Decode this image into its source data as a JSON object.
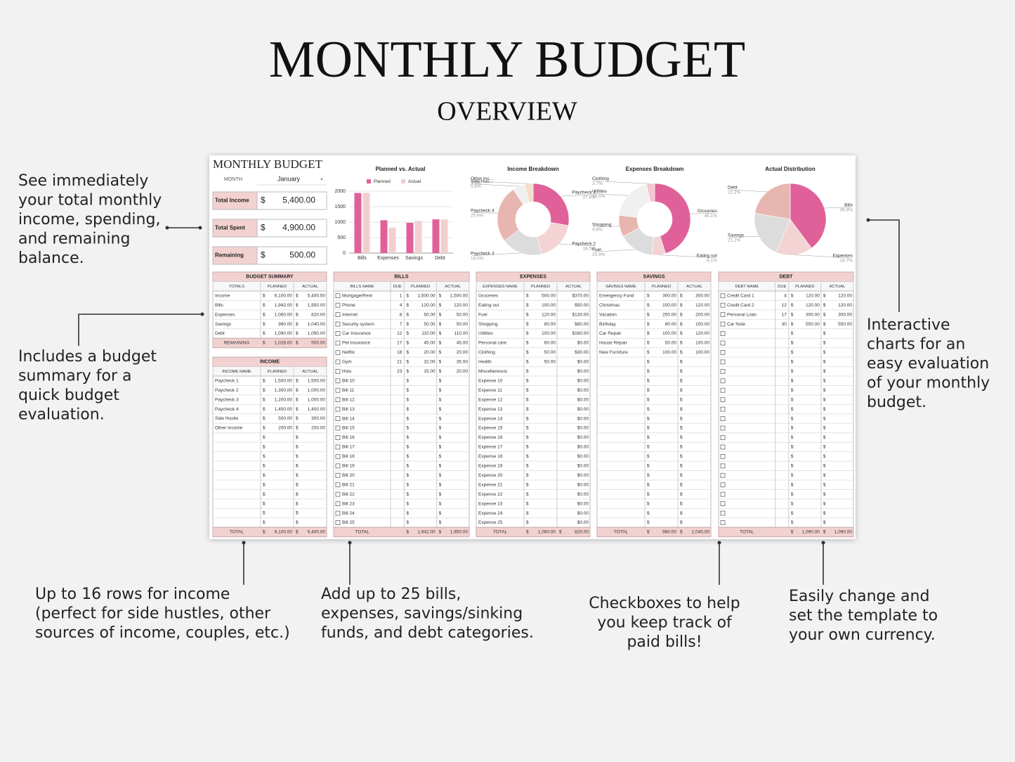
{
  "header": {
    "title": "MONTHLY BUDGET",
    "subtitle": "OVERVIEW"
  },
  "annotations": [
    {
      "lines": [
        "See immediately",
        "your total monthly",
        "income, spending,",
        "and remaining",
        "balance."
      ]
    },
    {
      "lines": [
        "Includes a budget",
        "summary for a",
        "quick budget",
        "evaluation."
      ]
    },
    {
      "lines": [
        "Interactive",
        "charts for an",
        "easy evaluation",
        "of your monthly",
        "budget."
      ]
    },
    {
      "lines": [
        "Up to 16 rows for income",
        "(perfect for side hustles, other",
        "sources of income, couples, etc.)"
      ]
    },
    {
      "lines": [
        "Add up to 25 bills,",
        "expenses, savings/sinking",
        "funds, and debt categories."
      ]
    },
    {
      "lines": [
        "Checkboxes to help",
        "you keep track of",
        "paid bills!"
      ]
    },
    {
      "lines": [
        "Easily change and",
        "set the template to",
        "your own currency."
      ]
    }
  ],
  "sheet": {
    "title": "MONTHLY BUDGET",
    "month_label": "MONTH:",
    "month": "January",
    "currency": "$",
    "kpis": [
      {
        "label": "Total Income",
        "value": "5,400.00"
      },
      {
        "label": "Total Spent",
        "value": "4,900.00"
      },
      {
        "label": "Remaining",
        "value": "500.00"
      }
    ],
    "tables": {
      "budget_summary": {
        "title": "BUDGET SUMMARY",
        "columns": [
          "TOTALS",
          "PLANNED",
          "ACTUAL"
        ],
        "rows": [
          [
            "Income",
            "6,100.00",
            "5,400.00"
          ],
          [
            "Bills",
            "1,942.00",
            "1,950.00"
          ],
          [
            "Expenses",
            "1,060.00",
            "820.00"
          ],
          [
            "Savings",
            "980.00",
            "1,040.00"
          ],
          [
            "Debt",
            "1,090.00",
            "1,090.00"
          ]
        ],
        "total": {
          "label": "REMAINING",
          "planned": "1,028.00",
          "actual": "500.00"
        }
      },
      "income": {
        "title": "INCOME",
        "columns": [
          "INCOME NAME",
          "PLANNED",
          "ACTUAL"
        ],
        "rows": [
          [
            "Paycheck 1",
            "1,500.00",
            "1,500.00"
          ],
          [
            "Paycheck 2",
            "1,300.00",
            "1,000.00"
          ],
          [
            "Paycheck 3",
            "1,200.00",
            "1,000.00"
          ],
          [
            "Paycheck 4",
            "1,400.00",
            "1,400.00"
          ],
          [
            "Side Hustle",
            "500.00",
            "300.00"
          ],
          [
            "Other Income",
            "200.00",
            "200.00"
          ],
          [
            null,
            null,
            null
          ],
          [
            null,
            null,
            null
          ],
          [
            null,
            null,
            null
          ],
          [
            null,
            null,
            null
          ],
          [
            null,
            null,
            null
          ],
          [
            null,
            null,
            null
          ],
          [
            null,
            null,
            null
          ],
          [
            null,
            null,
            null
          ],
          [
            null,
            null,
            null
          ],
          [
            null,
            null,
            null
          ]
        ],
        "total": {
          "label": "TOTAL",
          "planned": "6,100.00",
          "actual": "5,400.00"
        }
      },
      "bills": {
        "title": "BILLS",
        "columns": [
          "BILLS NAME",
          "DUE",
          "PLANNED",
          "ACTUAL"
        ],
        "rows": [
          [
            "Mortgage/Rent",
            "1",
            "1,500.00",
            "1,500.00"
          ],
          [
            "Phone",
            "4",
            "120.00",
            "120.00"
          ],
          [
            "Internet",
            "8",
            "50.00",
            "50.00"
          ],
          [
            "Security system",
            "7",
            "50.00",
            "50.00"
          ],
          [
            "Car Insurance",
            "12",
            "110.00",
            "110.00"
          ],
          [
            "Pet Insurance",
            "17",
            "45.00",
            "45.00"
          ],
          [
            "Netflix",
            "18",
            "20.00",
            "20.00"
          ],
          [
            "Gym",
            "21",
            "32.00",
            "35.00"
          ],
          [
            "Hulu",
            "23",
            "15.00",
            "20.00"
          ],
          [
            "Bill 10",
            null,
            null,
            null
          ],
          [
            "Bill 11",
            null,
            null,
            null
          ],
          [
            "Bill 12",
            null,
            null,
            null
          ],
          [
            "Bill 13",
            null,
            null,
            null
          ],
          [
            "Bill 14",
            null,
            null,
            null
          ],
          [
            "Bill 15",
            null,
            null,
            null
          ],
          [
            "Bill 16",
            null,
            null,
            null
          ],
          [
            "Bill 17",
            null,
            null,
            null
          ],
          [
            "Bill 18",
            null,
            null,
            null
          ],
          [
            "Bill 19",
            null,
            null,
            null
          ],
          [
            "Bill 20",
            null,
            null,
            null
          ],
          [
            "Bill 21",
            null,
            null,
            null
          ],
          [
            "Bill 22",
            null,
            null,
            null
          ],
          [
            "Bill 23",
            null,
            null,
            null
          ],
          [
            "Bill 24",
            null,
            null,
            null
          ],
          [
            "Bill 25",
            null,
            null,
            null
          ]
        ],
        "total": {
          "label": "TOTAL",
          "planned": "1,942.00",
          "actual": "1,950.00"
        }
      },
      "expenses": {
        "title": "EXPENSES",
        "columns": [
          "EXPENSES NAME",
          "PLANNED",
          "ACTUAL"
        ],
        "rows": [
          [
            "Groceries",
            "500.00",
            "$370.00"
          ],
          [
            "Eating out",
            "100.00",
            "$50.00"
          ],
          [
            "Fuel",
            "120.00",
            "$130.00"
          ],
          [
            "Shopping",
            "80.00",
            "$80.00"
          ],
          [
            "Utilities",
            "100.00",
            "$160.00"
          ],
          [
            "Personal care",
            "60.00",
            "$0.00"
          ],
          [
            "Clothing",
            "50.00",
            "$30.00"
          ],
          [
            "Health",
            "50.00",
            "$0.00"
          ],
          [
            "Miscellaneous",
            null,
            "$0.00"
          ],
          [
            "Expense 10",
            null,
            "$0.00"
          ],
          [
            "Expense 11",
            null,
            "$0.00"
          ],
          [
            "Expense 12",
            null,
            "$0.00"
          ],
          [
            "Expense 13",
            null,
            "$0.00"
          ],
          [
            "Expense 14",
            null,
            "$0.00"
          ],
          [
            "Expense 15",
            null,
            "$0.00"
          ],
          [
            "Expense 16",
            null,
            "$0.00"
          ],
          [
            "Expense 17",
            null,
            "$0.00"
          ],
          [
            "Expense 18",
            null,
            "$0.00"
          ],
          [
            "Expense 19",
            null,
            "$0.00"
          ],
          [
            "Expense 20",
            null,
            "$0.00"
          ],
          [
            "Expense 21",
            null,
            "$0.00"
          ],
          [
            "Expense 22",
            null,
            "$0.00"
          ],
          [
            "Expense 23",
            null,
            "$0.00"
          ],
          [
            "Expense 24",
            null,
            "$0.00"
          ],
          [
            "Expense 25",
            null,
            "$0.00"
          ]
        ],
        "total": {
          "label": "TOTAL",
          "planned": "1,060.00",
          "actual": "820.00"
        }
      },
      "savings": {
        "title": "SAVINGS",
        "columns": [
          "SAVINGS NAME",
          "PLANNED",
          "ACTUAL"
        ],
        "rows": [
          [
            "Emergency Fund",
            "300.00",
            "300.00"
          ],
          [
            "Christmas",
            "100.00",
            "120.00"
          ],
          [
            "Vacation",
            "250.00",
            "200.00"
          ],
          [
            "Birthday",
            "80.00",
            "100.00"
          ],
          [
            "Car Repair",
            "100.00",
            "120.00"
          ],
          [
            "House Repair",
            "50.00",
            "100.00"
          ],
          [
            "New Furniture",
            "100.00",
            "100.00"
          ],
          [
            null,
            null,
            null
          ],
          [
            null,
            null,
            null
          ],
          [
            null,
            null,
            null
          ],
          [
            null,
            null,
            null
          ],
          [
            null,
            null,
            null
          ],
          [
            null,
            null,
            null
          ],
          [
            null,
            null,
            null
          ],
          [
            null,
            null,
            null
          ],
          [
            null,
            null,
            null
          ],
          [
            null,
            null,
            null
          ],
          [
            null,
            null,
            null
          ],
          [
            null,
            null,
            null
          ],
          [
            null,
            null,
            null
          ],
          [
            null,
            null,
            null
          ],
          [
            null,
            null,
            null
          ],
          [
            null,
            null,
            null
          ],
          [
            null,
            null,
            null
          ],
          [
            null,
            null,
            null
          ]
        ],
        "total": {
          "label": "TOTAL",
          "planned": "980.00",
          "actual": "1,040.00"
        }
      },
      "debt": {
        "title": "DEBT",
        "columns": [
          "DEBT NAME",
          "DUE",
          "PLANNED",
          "ACTUAL"
        ],
        "rows": [
          [
            "Credit Card 1",
            "4",
            "120.00",
            "120.00"
          ],
          [
            "Credit Card 2",
            "12",
            "120.00",
            "120.00"
          ],
          [
            "Personal Loan",
            "17",
            "300.00",
            "300.00"
          ],
          [
            "Car Note",
            "30",
            "550.00",
            "550.00"
          ],
          [
            null,
            null,
            null,
            null
          ],
          [
            null,
            null,
            null,
            null
          ],
          [
            null,
            null,
            null,
            null
          ],
          [
            null,
            null,
            null,
            null
          ],
          [
            null,
            null,
            null,
            null
          ],
          [
            null,
            null,
            null,
            null
          ],
          [
            null,
            null,
            null,
            null
          ],
          [
            null,
            null,
            null,
            null
          ],
          [
            null,
            null,
            null,
            null
          ],
          [
            null,
            null,
            null,
            null
          ],
          [
            null,
            null,
            null,
            null
          ],
          [
            null,
            null,
            null,
            null
          ],
          [
            null,
            null,
            null,
            null
          ],
          [
            null,
            null,
            null,
            null
          ],
          [
            null,
            null,
            null,
            null
          ],
          [
            null,
            null,
            null,
            null
          ],
          [
            null,
            null,
            null,
            null
          ],
          [
            null,
            null,
            null,
            null
          ],
          [
            null,
            null,
            null,
            null
          ],
          [
            null,
            null,
            null,
            null
          ],
          [
            null,
            null,
            null,
            null
          ]
        ],
        "total": {
          "label": "TOTAL",
          "planned": "1,090.00",
          "actual": "1,090.00"
        }
      }
    }
  },
  "chart_data": [
    {
      "type": "bar",
      "title": "Planned vs. Actual",
      "categories": [
        "Bills",
        "Expenses",
        "Savings",
        "Debt"
      ],
      "series": [
        {
          "name": "Planned",
          "color": "#e0619a",
          "values": [
            1942,
            1060,
            980,
            1090
          ]
        },
        {
          "name": "Actual",
          "color": "#f2cfcf",
          "values": [
            1950,
            820,
            1040,
            1090
          ]
        }
      ],
      "ylim": [
        0,
        2000
      ],
      "yticks": [
        0,
        500,
        1000,
        1500,
        2000
      ],
      "grid": true,
      "legend": "top"
    },
    {
      "type": "donut",
      "title": "Income Breakdown",
      "categories": [
        "Paycheck 1",
        "Paycheck 2",
        "Paycheck 3",
        "Paycheck 4",
        "Side Hus...",
        "Other Inc..."
      ],
      "values": [
        27.8,
        18.5,
        18.5,
        25.9,
        5.6,
        3.7
      ],
      "value_labels": [
        "27.8%",
        "18.5%",
        "18.5%",
        "25.9%",
        "5.6%",
        "3.7%"
      ],
      "colors": [
        "#e0619a",
        "#f3d3d3",
        "#dcdcdc",
        "#e8b6b0",
        "#f0f0f0",
        "#f5dccb"
      ]
    },
    {
      "type": "donut",
      "title": "Expenses Breakdown",
      "categories": [
        "Groceries",
        "Eating out",
        "Fuel",
        "Shopping",
        "Utilities",
        "Clothing"
      ],
      "values": [
        45.1,
        6.1,
        15.9,
        9.8,
        19.5,
        3.7
      ],
      "value_labels": [
        "45.1%",
        "6.1%",
        "15.9%",
        "9.8%",
        "19.5%",
        "3.7%"
      ],
      "colors": [
        "#e0619a",
        "#f3d3d3",
        "#dcdcdc",
        "#e8b6b0",
        "#f0f0f0",
        "#f5c6cf"
      ]
    },
    {
      "type": "pie",
      "title": "Actual Distribution",
      "categories": [
        "Bills",
        "Expenses",
        "Savings",
        "Debt"
      ],
      "values": [
        39.8,
        16.7,
        21.2,
        22.2
      ],
      "value_labels": [
        "39.8%",
        "16.7%",
        "21.2%",
        "22.2%"
      ],
      "colors": [
        "#e0619a",
        "#f3d3d3",
        "#dcdcdc",
        "#e8b6b0"
      ]
    }
  ]
}
